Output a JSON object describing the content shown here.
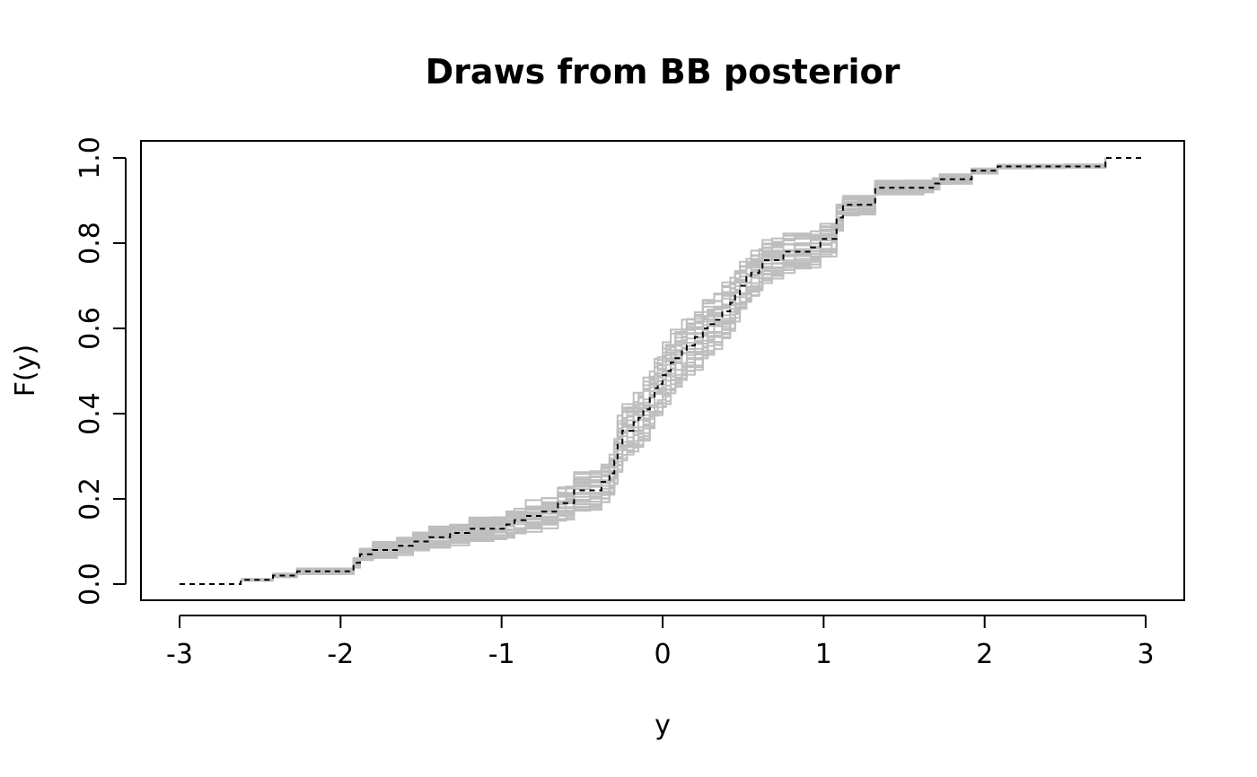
{
  "chart_data": {
    "type": "line",
    "title": "Draws from BB posterior",
    "xlabel": "y",
    "ylabel": "F(y)",
    "xlim": [
      -3,
      3
    ],
    "ylim": [
      0,
      1
    ],
    "x_ticks": [
      "-3",
      "-2",
      "-1",
      "0",
      "1",
      "2",
      "3"
    ],
    "y_ticks": [
      "0.0",
      "0.2",
      "0.4",
      "0.6",
      "0.8",
      "1.0"
    ],
    "grid": false,
    "legend": "none",
    "colors": {
      "draws": "#bebebe",
      "mean": "#000000"
    },
    "series": [
      {
        "style": "dashed",
        "color": "#000000",
        "x": [
          -3.0,
          -2.62,
          -2.42,
          -2.27,
          -1.92,
          -1.88,
          -1.8,
          -1.65,
          -1.55,
          -1.45,
          -1.32,
          -1.2,
          -1.05,
          -0.97,
          -0.92,
          -0.85,
          -0.75,
          -0.65,
          -0.6,
          -0.55,
          -0.45,
          -0.38,
          -0.33,
          -0.3,
          -0.28,
          -0.25,
          -0.22,
          -0.18,
          -0.15,
          -0.12,
          -0.08,
          -0.05,
          -0.03,
          0.0,
          0.02,
          0.05,
          0.08,
          0.12,
          0.15,
          0.2,
          0.25,
          0.28,
          0.32,
          0.37,
          0.42,
          0.45,
          0.48,
          0.52,
          0.55,
          0.6,
          0.62,
          0.68,
          0.75,
          0.82,
          0.92,
          0.98,
          1.05,
          1.08,
          1.12,
          1.22,
          1.32,
          1.5,
          1.62,
          1.68,
          1.72,
          1.8,
          1.92,
          2.08,
          2.3,
          2.5,
          2.75,
          3.0
        ],
        "y": [
          0.0,
          0.01,
          0.02,
          0.03,
          0.05,
          0.07,
          0.08,
          0.09,
          0.1,
          0.11,
          0.12,
          0.13,
          0.13,
          0.14,
          0.15,
          0.16,
          0.17,
          0.19,
          0.19,
          0.22,
          0.22,
          0.24,
          0.26,
          0.29,
          0.33,
          0.36,
          0.36,
          0.38,
          0.39,
          0.41,
          0.44,
          0.46,
          0.47,
          0.49,
          0.5,
          0.52,
          0.53,
          0.55,
          0.56,
          0.58,
          0.6,
          0.61,
          0.62,
          0.64,
          0.66,
          0.68,
          0.7,
          0.72,
          0.73,
          0.74,
          0.76,
          0.76,
          0.78,
          0.78,
          0.79,
          0.81,
          0.81,
          0.86,
          0.89,
          0.89,
          0.93,
          0.93,
          0.93,
          0.94,
          0.95,
          0.95,
          0.97,
          0.98,
          0.98,
          0.98,
          1.0,
          1.0
        ]
      }
    ]
  }
}
